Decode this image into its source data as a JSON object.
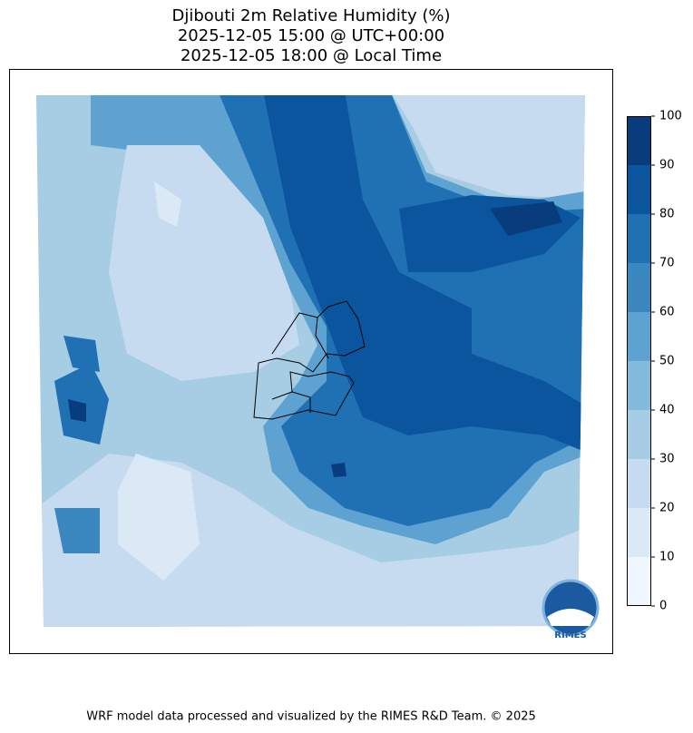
{
  "title_lines": [
    "Djibouti 2m Relative Humidity (%)",
    "2025-12-05 15:00 @ UTC+00:00",
    "2025-12-05 18:00 @ Local Time"
  ],
  "colorbar": {
    "clim": [
      0,
      100
    ],
    "ticks": [
      0,
      10,
      20,
      30,
      40,
      50,
      60,
      70,
      80,
      90,
      100
    ],
    "colors": [
      "#f0f6fd",
      "#dbe9f6",
      "#c6dbef",
      "#a6cde3",
      "#82bbdb",
      "#5da2d0",
      "#3b87c0",
      "#2070b4",
      "#0a559e",
      "#083c7d"
    ]
  },
  "logo": "RIMES",
  "footer": "WRF model data processed and visualized by the RIMES R&D Team. © 2025"
}
